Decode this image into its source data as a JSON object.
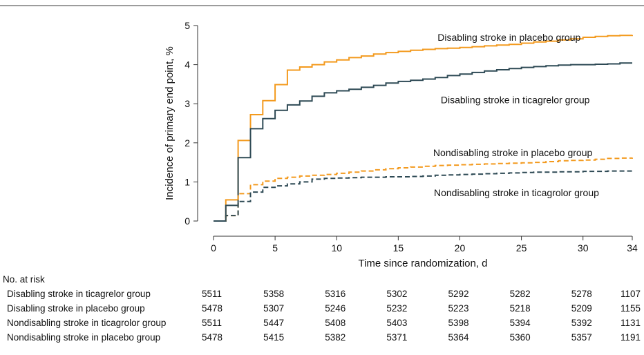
{
  "chart_data": {
    "type": "line",
    "title": "",
    "xlabel": "Time since randomization, d",
    "ylabel": "Incidence of primary end point, %",
    "xlim": [
      0,
      34
    ],
    "ylim": [
      0,
      5
    ],
    "xticks": [
      0,
      5,
      10,
      15,
      20,
      25,
      30,
      34
    ],
    "yticks": [
      0,
      1,
      2,
      3,
      4,
      5
    ],
    "grid": false,
    "series": [
      {
        "name": "Disabling stroke in placebo group",
        "color": "#f39a1e",
        "dash": false,
        "steps": [
          [
            0,
            0
          ],
          [
            1,
            0.54
          ],
          [
            2,
            2.06
          ],
          [
            2.5,
            2.06
          ],
          [
            3,
            2.72
          ],
          [
            4,
            3.08
          ],
          [
            5,
            3.49
          ],
          [
            6,
            3.86
          ],
          [
            7,
            3.94
          ],
          [
            8,
            4.0
          ],
          [
            9,
            4.07
          ],
          [
            10,
            4.12
          ],
          [
            11,
            4.18
          ],
          [
            12,
            4.22
          ],
          [
            13,
            4.27
          ],
          [
            14,
            4.31
          ],
          [
            15,
            4.34
          ],
          [
            16,
            4.37
          ],
          [
            17,
            4.39
          ],
          [
            18,
            4.41
          ],
          [
            19,
            4.42
          ],
          [
            20,
            4.44
          ],
          [
            21,
            4.46
          ],
          [
            22,
            4.48
          ],
          [
            23,
            4.5
          ],
          [
            24,
            4.52
          ],
          [
            25,
            4.55
          ],
          [
            26,
            4.58
          ],
          [
            27,
            4.6
          ],
          [
            28,
            4.63
          ],
          [
            29,
            4.66
          ],
          [
            30,
            4.7
          ],
          [
            31,
            4.72
          ],
          [
            32,
            4.74
          ],
          [
            33,
            4.75
          ],
          [
            34,
            4.76
          ]
        ]
      },
      {
        "name": "Disabling stroke in ticagrelor group",
        "color": "#2e4a55",
        "dash": false,
        "steps": [
          [
            0,
            0
          ],
          [
            1,
            0.4
          ],
          [
            2,
            1.62
          ],
          [
            3,
            2.36
          ],
          [
            4,
            2.62
          ],
          [
            5,
            2.83
          ],
          [
            6,
            2.97
          ],
          [
            7,
            3.07
          ],
          [
            8,
            3.19
          ],
          [
            9,
            3.28
          ],
          [
            10,
            3.33
          ],
          [
            11,
            3.37
          ],
          [
            12,
            3.42
          ],
          [
            13,
            3.47
          ],
          [
            14,
            3.53
          ],
          [
            15,
            3.57
          ],
          [
            16,
            3.6
          ],
          [
            17,
            3.63
          ],
          [
            18,
            3.67
          ],
          [
            19,
            3.72
          ],
          [
            20,
            3.76
          ],
          [
            21,
            3.8
          ],
          [
            22,
            3.84
          ],
          [
            23,
            3.87
          ],
          [
            24,
            3.9
          ],
          [
            25,
            3.93
          ],
          [
            26,
            3.95
          ],
          [
            27,
            3.97
          ],
          [
            28,
            3.99
          ],
          [
            29,
            4.0
          ],
          [
            30,
            4.0
          ],
          [
            31,
            4.01
          ],
          [
            32,
            4.02
          ],
          [
            33,
            4.04
          ],
          [
            34,
            4.04
          ]
        ]
      },
      {
        "name": "Nondisabling stroke in placebo group",
        "color": "#f39a1e",
        "dash": true,
        "steps": [
          [
            0,
            0
          ],
          [
            1,
            0.14
          ],
          [
            2,
            0.7
          ],
          [
            3,
            0.93
          ],
          [
            4,
            1.02
          ],
          [
            5,
            1.09
          ],
          [
            6,
            1.12
          ],
          [
            7,
            1.15
          ],
          [
            8,
            1.17
          ],
          [
            9,
            1.19
          ],
          [
            10,
            1.22
          ],
          [
            11,
            1.25
          ],
          [
            12,
            1.28
          ],
          [
            13,
            1.31
          ],
          [
            14,
            1.34
          ],
          [
            15,
            1.36
          ],
          [
            16,
            1.38
          ],
          [
            17,
            1.4
          ],
          [
            18,
            1.42
          ],
          [
            19,
            1.43
          ],
          [
            20,
            1.44
          ],
          [
            21,
            1.45
          ],
          [
            22,
            1.46
          ],
          [
            23,
            1.47
          ],
          [
            24,
            1.48
          ],
          [
            25,
            1.49
          ],
          [
            26,
            1.5
          ],
          [
            27,
            1.52
          ],
          [
            28,
            1.54
          ],
          [
            29,
            1.55
          ],
          [
            30,
            1.56
          ],
          [
            31,
            1.58
          ],
          [
            32,
            1.6
          ],
          [
            33,
            1.61
          ],
          [
            34,
            1.62
          ]
        ]
      },
      {
        "name": "Nondisabling stroke in ticagrolor group",
        "color": "#2e4a55",
        "dash": true,
        "steps": [
          [
            0,
            0
          ],
          [
            1,
            0.14
          ],
          [
            1.9,
            0.14
          ],
          [
            2,
            0.5
          ],
          [
            3,
            0.74
          ],
          [
            4,
            0.86
          ],
          [
            5,
            0.9
          ],
          [
            6,
            0.95
          ],
          [
            7,
            1.0
          ],
          [
            8,
            1.07
          ],
          [
            9,
            1.09
          ],
          [
            10,
            1.1
          ],
          [
            11,
            1.11
          ],
          [
            12,
            1.12
          ],
          [
            13,
            1.12
          ],
          [
            14,
            1.13
          ],
          [
            15,
            1.13
          ],
          [
            16,
            1.14
          ],
          [
            17,
            1.15
          ],
          [
            18,
            1.17
          ],
          [
            19,
            1.18
          ],
          [
            20,
            1.19
          ],
          [
            21,
            1.2
          ],
          [
            22,
            1.21
          ],
          [
            23,
            1.22
          ],
          [
            24,
            1.23
          ],
          [
            25,
            1.24
          ],
          [
            26,
            1.25
          ],
          [
            27,
            1.25
          ],
          [
            28,
            1.26
          ],
          [
            29,
            1.26
          ],
          [
            30,
            1.27
          ],
          [
            31,
            1.27
          ],
          [
            32,
            1.28
          ],
          [
            33,
            1.28
          ],
          [
            34,
            1.28
          ]
        ]
      }
    ],
    "annotations": [
      {
        "text": "Disabling stroke in placebo group",
        "x": 24,
        "y": 4.7
      },
      {
        "text": "Disabling stroke in ticagrelor group",
        "x": 24.5,
        "y": 3.1
      },
      {
        "text": "Nondisabling stroke in placebo group",
        "x": 24.3,
        "y": 1.75
      },
      {
        "text": "Nondisabling stroke in ticagrolor group",
        "x": 24.6,
        "y": 0.72
      }
    ],
    "risk_table": {
      "title": "No. at risk",
      "times": [
        0,
        5,
        10,
        15,
        20,
        25,
        30,
        34
      ],
      "rows": [
        {
          "label": "Disabling stroke in ticagrelor group",
          "values": [
            "5511",
            "5358",
            "5316",
            "5302",
            "5292",
            "5282",
            "5278",
            "1107"
          ]
        },
        {
          "label": "Disabling stroke in placebo group",
          "values": [
            "5478",
            "5307",
            "5246",
            "5232",
            "5223",
            "5218",
            "5209",
            "1155"
          ]
        },
        {
          "label": "Nondisabling stroke in ticagrolor group",
          "values": [
            "5511",
            "5447",
            "5408",
            "5403",
            "5398",
            "5394",
            "5392",
            "1131"
          ]
        },
        {
          "label": "Nondisabling stroke in placebo group",
          "values": [
            "5478",
            "5415",
            "5382",
            "5371",
            "5364",
            "5360",
            "5357",
            "1191"
          ]
        }
      ]
    }
  }
}
